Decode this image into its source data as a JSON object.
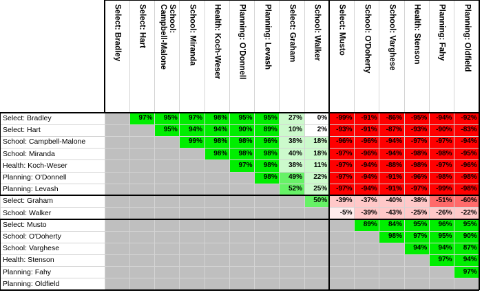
{
  "colors": {
    "gray": "#bfbfbf",
    "pos_strong": "#00ee00",
    "pos_mid": "#66f266",
    "pos_light": "#ccfacc",
    "white": "#ffffff",
    "neg_strong": "#ff0000",
    "neg_mid": "#ff6a6a",
    "neg_light": "#ffc8c8",
    "neg_faint": "#ffecec"
  },
  "columns": [
    "Select: Bradley",
    "Select: Hart",
    "School:\nCampbell-Malone",
    "School: Miranda",
    "Health: Koch-Weser",
    "Planning: O'Donnell",
    "Planning: Levash",
    "Select: Graham",
    "School: Walker",
    "Select: Musto",
    "School: O'Doherty",
    "School: Varghese",
    "Health: Stenson",
    "Planning: Fahy",
    "Planning: Oldfield"
  ],
  "rows": [
    "Select: Bradley",
    "Select: Hart",
    "School: Campbell-Malone",
    "School: Miranda",
    "Health: Koch-Weser",
    "Planning: O'Donnell",
    "Planning: Levash",
    "Select: Graham",
    "School: Walker",
    "Select: Musto",
    "School: O'Doherty",
    "School: Varghese",
    "Health: Stenson",
    "Planning: Fahy",
    "Planning: Oldfield"
  ],
  "matrix": [
    [
      null,
      "97%",
      "95%",
      "97%",
      "98%",
      "95%",
      "95%",
      "27%",
      "0%",
      "-99%",
      "-91%",
      "-86%",
      "-95%",
      "-94%",
      "-92%"
    ],
    [
      null,
      null,
      "95%",
      "94%",
      "94%",
      "90%",
      "89%",
      "10%",
      "2%",
      "-93%",
      "-91%",
      "-87%",
      "-93%",
      "-90%",
      "-83%"
    ],
    [
      null,
      null,
      null,
      "99%",
      "98%",
      "98%",
      "96%",
      "38%",
      "18%",
      "-96%",
      "-96%",
      "-94%",
      "-97%",
      "-97%",
      "-94%"
    ],
    [
      null,
      null,
      null,
      null,
      "98%",
      "98%",
      "98%",
      "40%",
      "18%",
      "-97%",
      "-96%",
      "-94%",
      "-98%",
      "-98%",
      "-95%"
    ],
    [
      null,
      null,
      null,
      null,
      null,
      "97%",
      "98%",
      "38%",
      "11%",
      "-97%",
      "-94%",
      "-88%",
      "-98%",
      "-97%",
      "-96%"
    ],
    [
      null,
      null,
      null,
      null,
      null,
      null,
      "98%",
      "49%",
      "22%",
      "-97%",
      "-94%",
      "-91%",
      "-96%",
      "-98%",
      "-98%"
    ],
    [
      null,
      null,
      null,
      null,
      null,
      null,
      null,
      "52%",
      "25%",
      "-97%",
      "-94%",
      "-91%",
      "-97%",
      "-99%",
      "-98%"
    ],
    [
      null,
      null,
      null,
      null,
      null,
      null,
      null,
      null,
      "50%",
      "-39%",
      "-37%",
      "-40%",
      "-38%",
      "-51%",
      "-60%"
    ],
    [
      null,
      null,
      null,
      null,
      null,
      null,
      null,
      null,
      null,
      "-5%",
      "-39%",
      "-43%",
      "-25%",
      "-26%",
      "-22%"
    ],
    [
      null,
      null,
      null,
      null,
      null,
      null,
      null,
      null,
      null,
      null,
      "89%",
      "84%",
      "95%",
      "96%",
      "95%"
    ],
    [
      null,
      null,
      null,
      null,
      null,
      null,
      null,
      null,
      null,
      null,
      null,
      "98%",
      "97%",
      "95%",
      "90%"
    ],
    [
      null,
      null,
      null,
      null,
      null,
      null,
      null,
      null,
      null,
      null,
      null,
      null,
      "94%",
      "94%",
      "87%"
    ],
    [
      null,
      null,
      null,
      null,
      null,
      null,
      null,
      null,
      null,
      null,
      null,
      null,
      null,
      "97%",
      "94%"
    ],
    [
      null,
      null,
      null,
      null,
      null,
      null,
      null,
      null,
      null,
      null,
      null,
      null,
      null,
      null,
      "97%"
    ],
    [
      null,
      null,
      null,
      null,
      null,
      null,
      null,
      null,
      null,
      null,
      null,
      null,
      null,
      null,
      null
    ]
  ]
}
